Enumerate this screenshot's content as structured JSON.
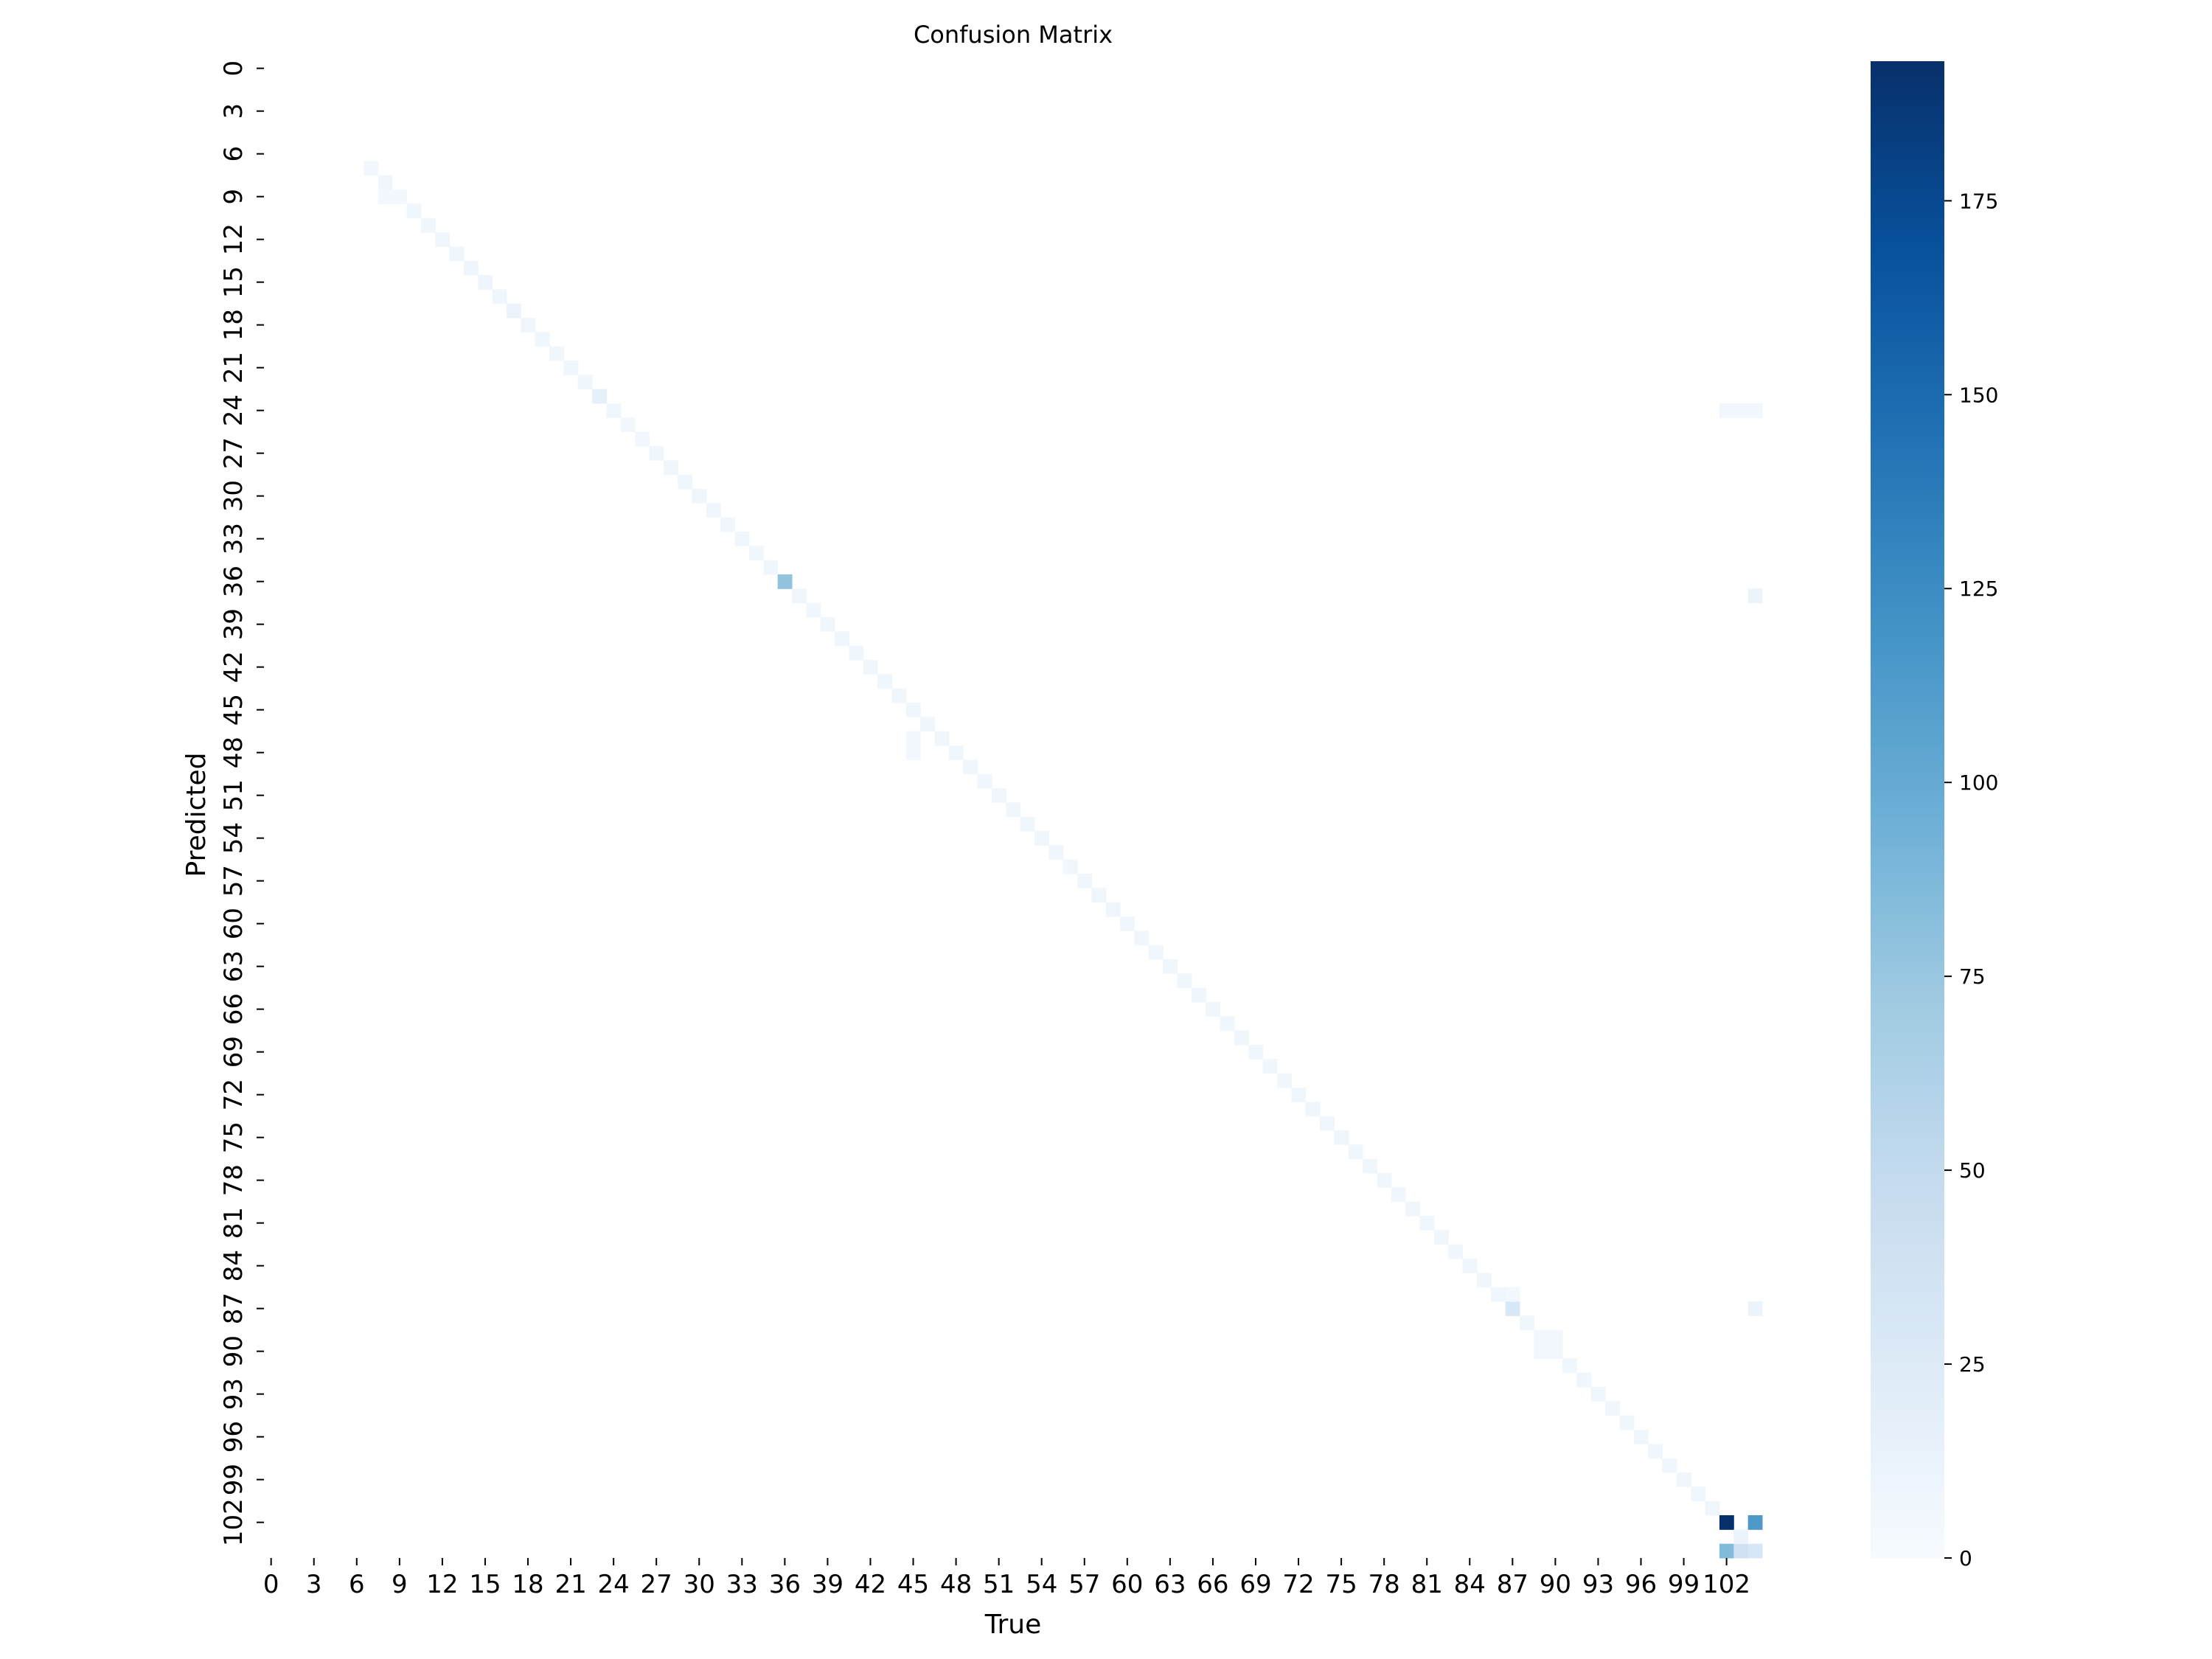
{
  "chart_data": {
    "type": "heatmap",
    "title": "Confusion Matrix",
    "xlabel": "True",
    "ylabel": "Predicted",
    "n_classes": 105,
    "x_tick_labels": [
      "0",
      "3",
      "6",
      "9",
      "12",
      "15",
      "18",
      "21",
      "24",
      "27",
      "30",
      "33",
      "36",
      "39",
      "42",
      "45",
      "48",
      "51",
      "54",
      "57",
      "60",
      "63",
      "66",
      "69",
      "72",
      "75",
      "78",
      "81",
      "84",
      "87",
      "90",
      "93",
      "96",
      "99",
      "102"
    ],
    "y_tick_labels": [
      "0",
      "3",
      "6",
      "9",
      "12",
      "15",
      "18",
      "21",
      "24",
      "27",
      "30",
      "33",
      "36",
      "39",
      "42",
      "45",
      "48",
      "51",
      "54",
      "57",
      "60",
      "63",
      "66",
      "69",
      "72",
      "75",
      "78",
      "81",
      "84",
      "87",
      "90",
      "93",
      "96",
      "99",
      "102"
    ],
    "colorbar": {
      "min": 0,
      "max": 193,
      "ticks": [
        0,
        25,
        50,
        75,
        100,
        125,
        150,
        175
      ],
      "colormap": "Blues"
    },
    "diagonal": {
      "from_class": 7,
      "to_class": 101,
      "typical_value": 8,
      "start_value": 6
    },
    "notable_cells": [
      {
        "true": 36,
        "predicted": 36,
        "value": 78
      },
      {
        "true": 87,
        "predicted": 87,
        "value": 30
      },
      {
        "true": 102,
        "predicted": 102,
        "value": 193
      },
      {
        "true": 104,
        "predicted": 102,
        "value": 115
      },
      {
        "true": 102,
        "predicted": 104,
        "value": 85
      },
      {
        "true": 103,
        "predicted": 104,
        "value": 40
      },
      {
        "true": 104,
        "predicted": 104,
        "value": 30
      },
      {
        "true": 103,
        "predicted": 103,
        "value": 12
      },
      {
        "true": 23,
        "predicted": 23,
        "value": 16
      },
      {
        "true": 17,
        "predicted": 17,
        "value": 12
      },
      {
        "true": 14,
        "predicted": 14,
        "value": 9
      },
      {
        "true": 15,
        "predicted": 15,
        "value": 9
      },
      {
        "true": 89,
        "predicted": 89,
        "value": 6
      },
      {
        "true": 90,
        "predicted": 89,
        "value": 6
      },
      {
        "true": 89,
        "predicted": 90,
        "value": 6
      },
      {
        "true": 90,
        "predicted": 90,
        "value": 6
      },
      {
        "true": 104,
        "predicted": 37,
        "value": 12
      },
      {
        "true": 104,
        "predicted": 87,
        "value": 12
      },
      {
        "true": 102,
        "predicted": 24,
        "value": 6
      },
      {
        "true": 103,
        "predicted": 24,
        "value": 6
      },
      {
        "true": 104,
        "predicted": 24,
        "value": 6
      },
      {
        "true": 8,
        "predicted": 9,
        "value": 4
      },
      {
        "true": 9,
        "predicted": 9,
        "value": 4
      },
      {
        "true": 25,
        "predicted": 25,
        "value": 6
      },
      {
        "true": 26,
        "predicted": 26,
        "value": 6
      },
      {
        "true": 87,
        "predicted": 86,
        "value": 4
      },
      {
        "true": 45,
        "predicted": 47,
        "value": 4
      },
      {
        "true": 45,
        "predicted": 48,
        "value": 4
      }
    ]
  }
}
